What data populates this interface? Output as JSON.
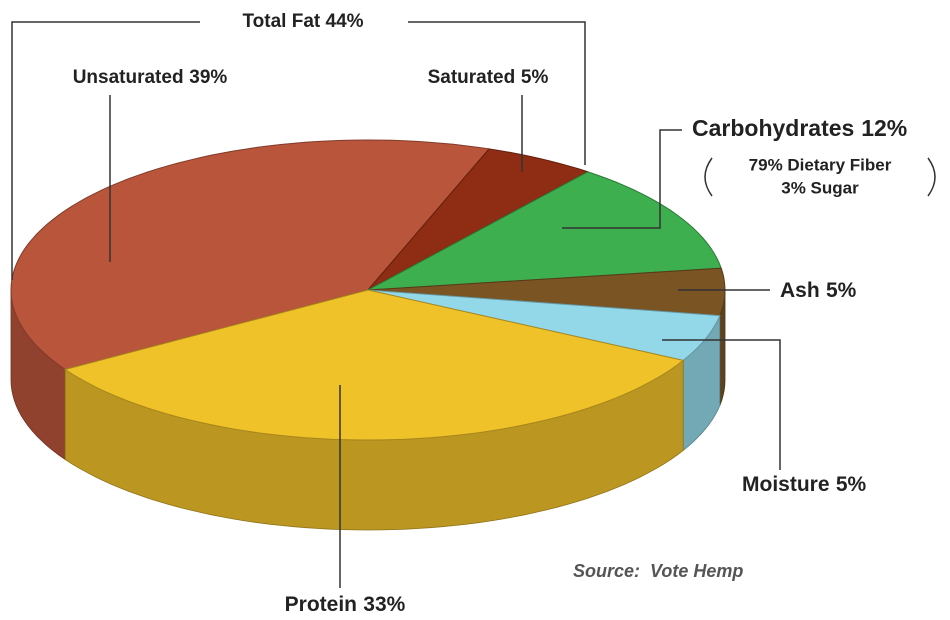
{
  "chart_data": {
    "type": "pie3d",
    "categories": [
      "Unsaturated",
      "Saturated",
      "Carbohydrates",
      "Ash",
      "Moisture",
      "Protein"
    ],
    "values": [
      39,
      5,
      12,
      5,
      5,
      33
    ],
    "value_labels": [
      "39%",
      "5%",
      "12%",
      "5%",
      "5%",
      "33%"
    ],
    "colors": [
      "#b9553b",
      "#8e2c14",
      "#3daf4f",
      "#7a5422",
      "#93d8e8",
      "#f0c22a"
    ],
    "annotations": {
      "total_fat": "Total Fat 44%",
      "carbohydrates_detail": [
        "79% Dietary Fiber",
        "3% Sugar"
      ]
    },
    "source": "Source:  Vote Hemp"
  }
}
